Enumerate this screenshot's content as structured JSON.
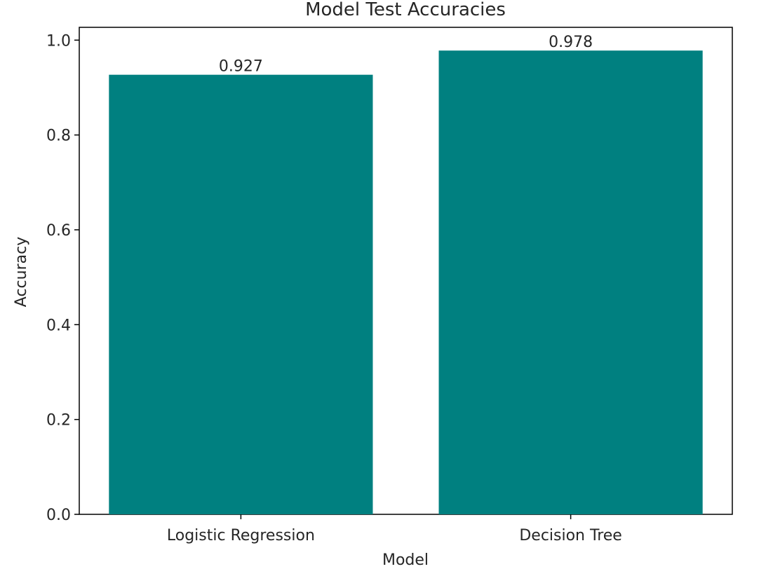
{
  "chart_data": {
    "type": "bar",
    "title": "Model Test Accuracies",
    "xlabel": "Model",
    "ylabel": "Accuracy",
    "categories": [
      "Logistic Regression",
      "Decision Tree"
    ],
    "values": [
      0.927,
      0.978
    ],
    "value_labels": [
      "0.927",
      "0.978"
    ],
    "ylim": [
      0,
      1.027
    ],
    "yticks": [
      0.0,
      0.2,
      0.4,
      0.6,
      0.8,
      1.0
    ],
    "ytick_labels": [
      "0.0",
      "0.2",
      "0.4",
      "0.6",
      "0.8",
      "1.0"
    ],
    "grid": false,
    "legend": "none",
    "bar_color": "#008080"
  }
}
